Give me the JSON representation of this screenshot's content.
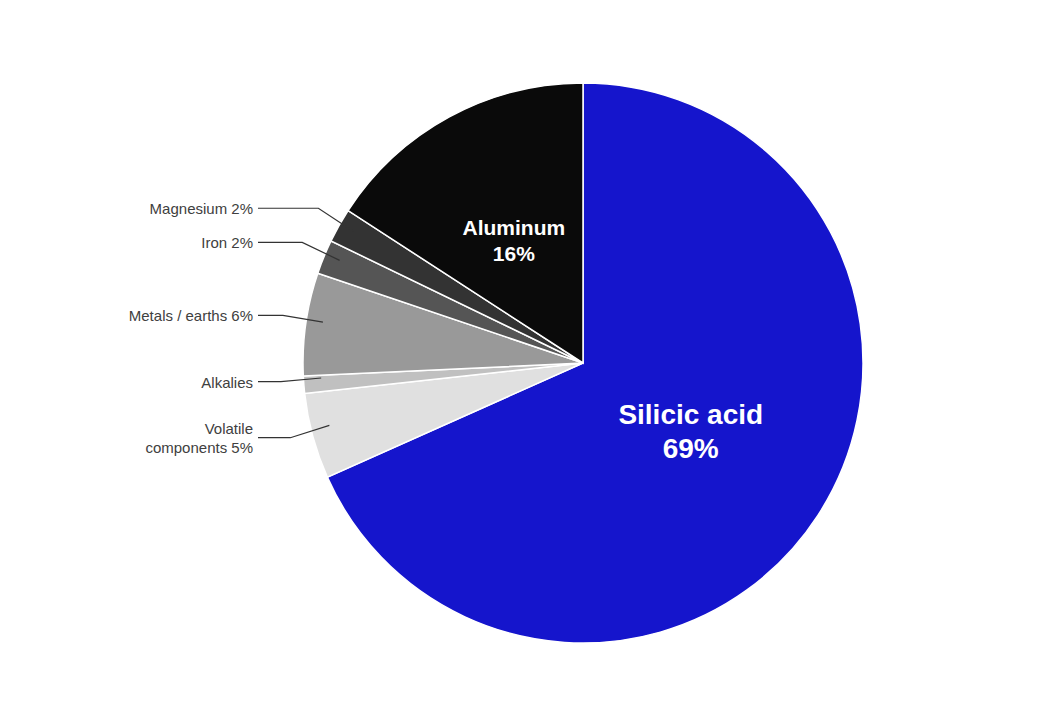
{
  "chart_data": {
    "type": "pie",
    "categories": [
      "Silicic acid\n69%",
      "Volatile\ncomponents 5%",
      "Alkalies",
      "Metals / earths 6%",
      "Iron 2%",
      "Magnesium 2%",
      "Aluminum\n16%"
    ],
    "values": [
      69,
      5,
      1,
      6,
      2,
      2,
      16
    ],
    "colors": [
      "#1515cc",
      "#e0e0e0",
      "#c0c0c0",
      "#999999",
      "#555555",
      "#333333",
      "#0a0a0a"
    ]
  }
}
